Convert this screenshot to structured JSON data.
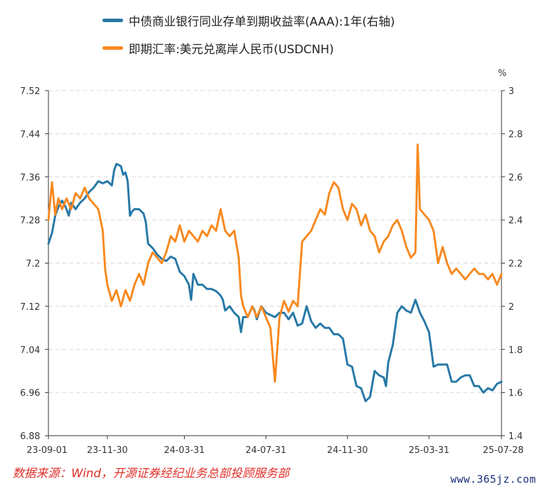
{
  "chart_data": {
    "type": "line",
    "legend": [
      {
        "name": "中债商业银行同业存单到期收益率(AAA):1年(右轴)",
        "color": "#2678a6",
        "axis": "right"
      },
      {
        "name": "即期汇率:美元兑离岸人民币(USDCNH)",
        "color": "#f7891f",
        "axis": "left"
      }
    ],
    "left_axis": {
      "min": 6.88,
      "max": 7.52,
      "ticks": [
        "7.52",
        "7.44",
        "7.36",
        "7.28",
        "7.2",
        "7.12",
        "7.04",
        "6.96",
        "6.88"
      ]
    },
    "right_axis": {
      "min": 1.4,
      "max": 3.0,
      "unit": "%",
      "ticks": [
        "3",
        "2.8",
        "2.6",
        "2.4",
        "2.2",
        "2",
        "1.8",
        "1.6",
        "1.4"
      ]
    },
    "x_ticks": [
      "23-09-01",
      "23-11-30",
      "24-03-31",
      "24-07-31",
      "24-11-30",
      "25-03-31",
      "25-07-28"
    ],
    "x_tick_pos": [
      0,
      0.13,
      0.3,
      0.48,
      0.66,
      0.84,
      1.0
    ],
    "series": [
      {
        "name": "中债商业银行同业存单到期收益率(AAA):1年(右轴)",
        "axis": "right",
        "points": [
          [
            0,
            2.29
          ],
          [
            0.008,
            2.34
          ],
          [
            0.015,
            2.42
          ],
          [
            0.022,
            2.46
          ],
          [
            0.03,
            2.49
          ],
          [
            0.038,
            2.46
          ],
          [
            0.045,
            2.42
          ],
          [
            0.05,
            2.48
          ],
          [
            0.06,
            2.45
          ],
          [
            0.07,
            2.48
          ],
          [
            0.08,
            2.5
          ],
          [
            0.09,
            2.53
          ],
          [
            0.1,
            2.55
          ],
          [
            0.11,
            2.58
          ],
          [
            0.12,
            2.57
          ],
          [
            0.13,
            2.58
          ],
          [
            0.14,
            2.56
          ],
          [
            0.145,
            2.63
          ],
          [
            0.15,
            2.66
          ],
          [
            0.16,
            2.65
          ],
          [
            0.165,
            2.61
          ],
          [
            0.17,
            2.62
          ],
          [
            0.175,
            2.58
          ],
          [
            0.18,
            2.42
          ],
          [
            0.185,
            2.44
          ],
          [
            0.19,
            2.45
          ],
          [
            0.2,
            2.45
          ],
          [
            0.21,
            2.43
          ],
          [
            0.215,
            2.39
          ],
          [
            0.22,
            2.29
          ],
          [
            0.23,
            2.27
          ],
          [
            0.24,
            2.24
          ],
          [
            0.25,
            2.22
          ],
          [
            0.26,
            2.21
          ],
          [
            0.27,
            2.23
          ],
          [
            0.28,
            2.22
          ],
          [
            0.29,
            2.16
          ],
          [
            0.3,
            2.14
          ],
          [
            0.31,
            2.1
          ],
          [
            0.315,
            2.03
          ],
          [
            0.32,
            2.15
          ],
          [
            0.33,
            2.1
          ],
          [
            0.34,
            2.1
          ],
          [
            0.35,
            2.08
          ],
          [
            0.36,
            2.08
          ],
          [
            0.37,
            2.07
          ],
          [
            0.38,
            2.05
          ],
          [
            0.385,
            2.03
          ],
          [
            0.39,
            1.98
          ],
          [
            0.4,
            2.0
          ],
          [
            0.41,
            1.97
          ],
          [
            0.42,
            1.95
          ],
          [
            0.425,
            1.88
          ],
          [
            0.43,
            1.95
          ],
          [
            0.44,
            1.95
          ],
          [
            0.45,
            2.0
          ],
          [
            0.455,
            1.98
          ],
          [
            0.46,
            1.94
          ],
          [
            0.47,
            2.0
          ],
          [
            0.48,
            1.97
          ],
          [
            0.49,
            1.96
          ],
          [
            0.5,
            1.95
          ],
          [
            0.51,
            1.97
          ],
          [
            0.52,
            1.97
          ],
          [
            0.53,
            1.94
          ],
          [
            0.54,
            1.97
          ],
          [
            0.55,
            1.91
          ],
          [
            0.56,
            1.92
          ],
          [
            0.57,
            2.0
          ],
          [
            0.58,
            1.93
          ],
          [
            0.59,
            1.9
          ],
          [
            0.6,
            1.92
          ],
          [
            0.61,
            1.9
          ],
          [
            0.62,
            1.9
          ],
          [
            0.63,
            1.87
          ],
          [
            0.64,
            1.87
          ],
          [
            0.65,
            1.85
          ],
          [
            0.66,
            1.73
          ],
          [
            0.67,
            1.72
          ],
          [
            0.68,
            1.63
          ],
          [
            0.69,
            1.62
          ],
          [
            0.7,
            1.56
          ],
          [
            0.71,
            1.58
          ],
          [
            0.72,
            1.7
          ],
          [
            0.73,
            1.68
          ],
          [
            0.74,
            1.67
          ],
          [
            0.745,
            1.63
          ],
          [
            0.75,
            1.74
          ],
          [
            0.76,
            1.82
          ],
          [
            0.77,
            1.97
          ],
          [
            0.78,
            2.0
          ],
          [
            0.79,
            1.98
          ],
          [
            0.8,
            1.97
          ],
          [
            0.81,
            2.03
          ],
          [
            0.82,
            1.97
          ],
          [
            0.83,
            1.93
          ],
          [
            0.84,
            1.88
          ],
          [
            0.845,
            1.8
          ],
          [
            0.85,
            1.72
          ],
          [
            0.86,
            1.73
          ],
          [
            0.87,
            1.73
          ],
          [
            0.88,
            1.73
          ],
          [
            0.89,
            1.65
          ],
          [
            0.9,
            1.65
          ],
          [
            0.91,
            1.67
          ],
          [
            0.92,
            1.68
          ],
          [
            0.93,
            1.68
          ],
          [
            0.94,
            1.63
          ],
          [
            0.95,
            1.63
          ],
          [
            0.96,
            1.6
          ],
          [
            0.97,
            1.62
          ],
          [
            0.98,
            1.61
          ],
          [
            0.99,
            1.64
          ],
          [
            1.0,
            1.65
          ]
        ]
      },
      {
        "name": "即期汇率:美元兑离岸人民币(USDCNH)",
        "axis": "left",
        "points": [
          [
            0,
            7.28
          ],
          [
            0.008,
            7.35
          ],
          [
            0.015,
            7.29
          ],
          [
            0.022,
            7.32
          ],
          [
            0.03,
            7.3
          ],
          [
            0.04,
            7.32
          ],
          [
            0.05,
            7.3
          ],
          [
            0.06,
            7.33
          ],
          [
            0.07,
            7.32
          ],
          [
            0.08,
            7.34
          ],
          [
            0.09,
            7.32
          ],
          [
            0.1,
            7.31
          ],
          [
            0.11,
            7.3
          ],
          [
            0.12,
            7.26
          ],
          [
            0.125,
            7.19
          ],
          [
            0.13,
            7.16
          ],
          [
            0.14,
            7.13
          ],
          [
            0.15,
            7.15
          ],
          [
            0.16,
            7.12
          ],
          [
            0.17,
            7.15
          ],
          [
            0.18,
            7.13
          ],
          [
            0.19,
            7.16
          ],
          [
            0.2,
            7.18
          ],
          [
            0.21,
            7.16
          ],
          [
            0.22,
            7.2
          ],
          [
            0.23,
            7.22
          ],
          [
            0.24,
            7.21
          ],
          [
            0.25,
            7.2
          ],
          [
            0.26,
            7.22
          ],
          [
            0.27,
            7.25
          ],
          [
            0.28,
            7.24
          ],
          [
            0.29,
            7.27
          ],
          [
            0.3,
            7.24
          ],
          [
            0.31,
            7.26
          ],
          [
            0.32,
            7.25
          ],
          [
            0.33,
            7.24
          ],
          [
            0.34,
            7.26
          ],
          [
            0.35,
            7.25
          ],
          [
            0.36,
            7.27
          ],
          [
            0.37,
            7.26
          ],
          [
            0.38,
            7.3
          ],
          [
            0.39,
            7.26
          ],
          [
            0.4,
            7.25
          ],
          [
            0.41,
            7.26
          ],
          [
            0.42,
            7.21
          ],
          [
            0.425,
            7.14
          ],
          [
            0.43,
            7.12
          ],
          [
            0.44,
            7.1
          ],
          [
            0.45,
            7.12
          ],
          [
            0.46,
            7.1
          ],
          [
            0.47,
            7.12
          ],
          [
            0.48,
            7.1
          ],
          [
            0.49,
            7.08
          ],
          [
            0.495,
            7.03
          ],
          [
            0.5,
            6.98
          ],
          [
            0.505,
            7.04
          ],
          [
            0.51,
            7.1
          ],
          [
            0.52,
            7.13
          ],
          [
            0.53,
            7.11
          ],
          [
            0.54,
            7.13
          ],
          [
            0.55,
            7.12
          ],
          [
            0.56,
            7.24
          ],
          [
            0.57,
            7.25
          ],
          [
            0.58,
            7.26
          ],
          [
            0.59,
            7.28
          ],
          [
            0.6,
            7.3
          ],
          [
            0.61,
            7.29
          ],
          [
            0.62,
            7.33
          ],
          [
            0.63,
            7.35
          ],
          [
            0.64,
            7.34
          ],
          [
            0.65,
            7.3
          ],
          [
            0.66,
            7.28
          ],
          [
            0.67,
            7.31
          ],
          [
            0.68,
            7.3
          ],
          [
            0.69,
            7.27
          ],
          [
            0.7,
            7.29
          ],
          [
            0.71,
            7.26
          ],
          [
            0.72,
            7.25
          ],
          [
            0.73,
            7.22
          ],
          [
            0.74,
            7.24
          ],
          [
            0.75,
            7.25
          ],
          [
            0.76,
            7.27
          ],
          [
            0.77,
            7.28
          ],
          [
            0.78,
            7.26
          ],
          [
            0.79,
            7.23
          ],
          [
            0.8,
            7.21
          ],
          [
            0.81,
            7.22
          ],
          [
            0.815,
            7.42
          ],
          [
            0.82,
            7.3
          ],
          [
            0.83,
            7.29
          ],
          [
            0.84,
            7.28
          ],
          [
            0.85,
            7.26
          ],
          [
            0.86,
            7.2
          ],
          [
            0.87,
            7.23
          ],
          [
            0.88,
            7.2
          ],
          [
            0.89,
            7.18
          ],
          [
            0.9,
            7.19
          ],
          [
            0.91,
            7.18
          ],
          [
            0.92,
            7.17
          ],
          [
            0.93,
            7.18
          ],
          [
            0.94,
            7.19
          ],
          [
            0.95,
            7.18
          ],
          [
            0.96,
            7.18
          ],
          [
            0.97,
            7.17
          ],
          [
            0.98,
            7.18
          ],
          [
            0.99,
            7.16
          ],
          [
            1.0,
            7.18
          ]
        ]
      }
    ]
  },
  "source_text": "数据来源：Wind，开源证券经纪业务总部投顾服务部",
  "watermark": "www.365jz.com"
}
